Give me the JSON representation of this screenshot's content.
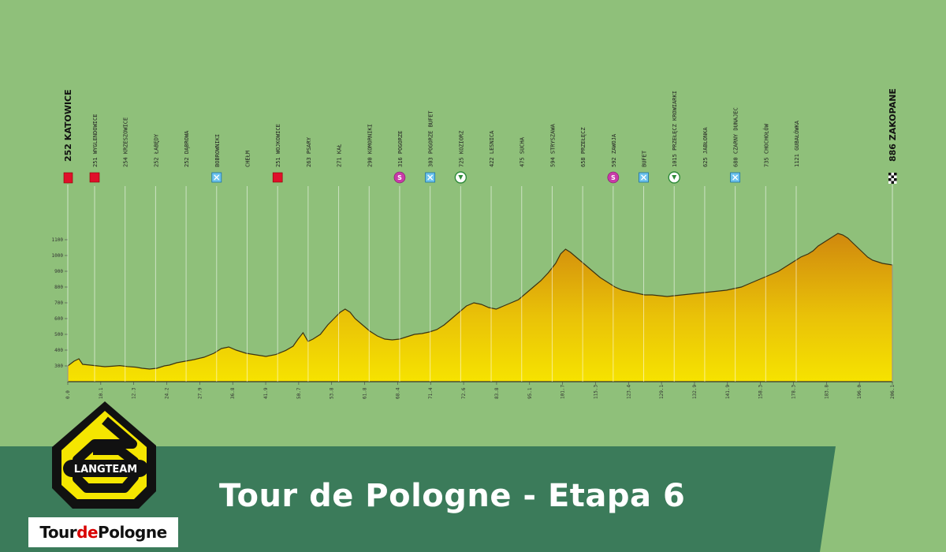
{
  "title": "Tour de Pologne - Etapa 6",
  "brand": {
    "team": "LANGTEAM",
    "race_logo_text": [
      "Tour",
      "de",
      "Pologne"
    ]
  },
  "colors": {
    "background": "#8fc07a",
    "banner": "#3b7b5a",
    "profile_top": "#d89a10",
    "profile_bottom": "#f6e000",
    "logo_yellow": "#f5e600"
  },
  "chart_data": {
    "type": "area",
    "start": {
      "label": "252 KATOWICE",
      "icon": "start-flag-icon"
    },
    "finish": {
      "label": "886 ZAKOPANE",
      "icon": "finish-flag-icon"
    },
    "y_ticks": [
      1100,
      1000,
      900,
      800,
      700,
      600,
      500,
      400,
      300
    ],
    "x_ticks": [
      "0.0",
      "10.1",
      "12.3",
      "24.2",
      "27.9",
      "36.8",
      "41.9",
      "50.7",
      "53.8",
      "61.8",
      "68.4",
      "71.4",
      "72.6",
      "83.8",
      "95.1",
      "101.7",
      "115.3",
      "123.4",
      "129.1",
      "132.9",
      "141.9",
      "158.3",
      "178.3",
      "183.8",
      "196.0",
      "206.1"
    ],
    "profile": [
      [
        0,
        300
      ],
      [
        5,
        330
      ],
      [
        9,
        345
      ],
      [
        12,
        310
      ],
      [
        18,
        305
      ],
      [
        24,
        300
      ],
      [
        30,
        295
      ],
      [
        36,
        298
      ],
      [
        42,
        302
      ],
      [
        48,
        296
      ],
      [
        55,
        292
      ],
      [
        60,
        285
      ],
      [
        66,
        280
      ],
      [
        72,
        285
      ],
      [
        78,
        300
      ],
      [
        82,
        305
      ],
      [
        88,
        320
      ],
      [
        95,
        330
      ],
      [
        102,
        340
      ],
      [
        110,
        355
      ],
      [
        118,
        380
      ],
      [
        124,
        410
      ],
      [
        130,
        420
      ],
      [
        136,
        400
      ],
      [
        144,
        380
      ],
      [
        152,
        370
      ],
      [
        160,
        360
      ],
      [
        168,
        372
      ],
      [
        176,
        398
      ],
      [
        182,
        425
      ],
      [
        186,
        470
      ],
      [
        190,
        510
      ],
      [
        194,
        455
      ],
      [
        198,
        470
      ],
      [
        204,
        500
      ],
      [
        210,
        560
      ],
      [
        215,
        600
      ],
      [
        220,
        640
      ],
      [
        224,
        660
      ],
      [
        228,
        640
      ],
      [
        232,
        600
      ],
      [
        238,
        560
      ],
      [
        244,
        520
      ],
      [
        250,
        490
      ],
      [
        256,
        470
      ],
      [
        262,
        465
      ],
      [
        268,
        470
      ],
      [
        272,
        480
      ],
      [
        276,
        490
      ],
      [
        280,
        500
      ],
      [
        286,
        505
      ],
      [
        292,
        515
      ],
      [
        298,
        530
      ],
      [
        304,
        560
      ],
      [
        310,
        600
      ],
      [
        316,
        640
      ],
      [
        322,
        680
      ],
      [
        328,
        700
      ],
      [
        334,
        690
      ],
      [
        340,
        670
      ],
      [
        346,
        660
      ],
      [
        352,
        680
      ],
      [
        358,
        700
      ],
      [
        364,
        720
      ],
      [
        370,
        760
      ],
      [
        376,
        800
      ],
      [
        382,
        840
      ],
      [
        388,
        890
      ],
      [
        394,
        950
      ],
      [
        398,
        1010
      ],
      [
        402,
        1040
      ],
      [
        406,
        1020
      ],
      [
        412,
        980
      ],
      [
        418,
        940
      ],
      [
        424,
        900
      ],
      [
        430,
        860
      ],
      [
        436,
        830
      ],
      [
        442,
        800
      ],
      [
        448,
        780
      ],
      [
        454,
        770
      ],
      [
        460,
        760
      ],
      [
        466,
        750
      ],
      [
        472,
        750
      ],
      [
        478,
        745
      ],
      [
        484,
        740
      ],
      [
        490,
        745
      ],
      [
        496,
        750
      ],
      [
        502,
        755
      ],
      [
        508,
        760
      ],
      [
        514,
        765
      ],
      [
        520,
        770
      ],
      [
        526,
        775
      ],
      [
        532,
        780
      ],
      [
        538,
        790
      ],
      [
        544,
        800
      ],
      [
        550,
        820
      ],
      [
        556,
        840
      ],
      [
        562,
        860
      ],
      [
        568,
        880
      ],
      [
        574,
        900
      ],
      [
        580,
        930
      ],
      [
        586,
        960
      ],
      [
        592,
        990
      ],
      [
        598,
        1010
      ],
      [
        602,
        1030
      ],
      [
        606,
        1060
      ],
      [
        610,
        1080
      ],
      [
        614,
        1100
      ],
      [
        618,
        1120
      ],
      [
        622,
        1140
      ],
      [
        626,
        1130
      ],
      [
        630,
        1110
      ],
      [
        634,
        1080
      ],
      [
        638,
        1050
      ],
      [
        642,
        1020
      ],
      [
        646,
        990
      ],
      [
        650,
        970
      ],
      [
        654,
        960
      ],
      [
        658,
        950
      ],
      [
        662,
        945
      ],
      [
        666,
        940
      ]
    ],
    "waypoints": [
      {
        "label": "251 WYGLENDOWICE",
        "icon": "red-square-icon"
      },
      {
        "label": "254 KRZESZOWICE",
        "icon": ""
      },
      {
        "label": "252 ŁABĘDY",
        "icon": ""
      },
      {
        "label": "252 DĄBROWA",
        "icon": ""
      },
      {
        "label": "BOBROWNIKI",
        "icon": "sprint-icon"
      },
      {
        "label": "CHEŁM",
        "icon": ""
      },
      {
        "label": "251 WOJKOWICE",
        "icon": "red-square-icon"
      },
      {
        "label": "263 PSARY",
        "icon": ""
      },
      {
        "label": "271 KAŁ",
        "icon": ""
      },
      {
        "label": "290 KOMORNIKI",
        "icon": ""
      },
      {
        "label": "316 POGORZE",
        "icon": "sprint-s-icon"
      },
      {
        "label": "303 POGORZE BUFET",
        "icon": "sprint-icon"
      },
      {
        "label": "725 KOZIORZ",
        "icon": "kom-icon"
      },
      {
        "label": "422 LESNICA",
        "icon": ""
      },
      {
        "label": "475 SUCHA",
        "icon": ""
      },
      {
        "label": "594 STRYSZAWA",
        "icon": ""
      },
      {
        "label": "658 PRZEŁĘCZ",
        "icon": ""
      },
      {
        "label": "592 ZAWOJA",
        "icon": "sprint-s-icon"
      },
      {
        "label": "BUFET",
        "icon": "sprint-icon"
      },
      {
        "label": "1015 PRZEŁĘCZ KROWIARKI",
        "icon": "kom-icon"
      },
      {
        "label": "625 JABŁONKA",
        "icon": ""
      },
      {
        "label": "680 CZARNY DUNAJEC",
        "icon": "sprint-icon"
      },
      {
        "label": "735 CHOCHOŁÓW",
        "icon": ""
      },
      {
        "label": "1121 GUBAŁÓWKA",
        "icon": ""
      }
    ]
  }
}
